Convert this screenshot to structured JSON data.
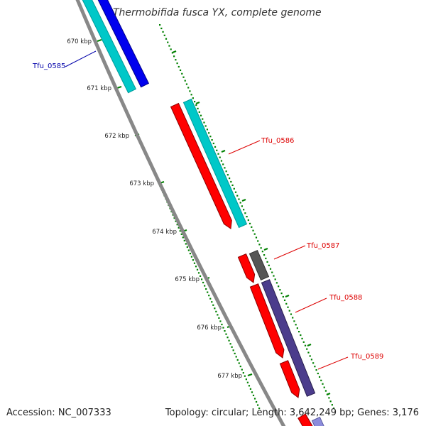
{
  "title": "Thermobifida fusca YX, complete genome",
  "footer": {
    "accession": "Accession: NC_007333",
    "summary": "Topology: circular; Length: 3,642,249 bp; Genes: 3,176"
  },
  "ticks": [
    "670 kbp",
    "671 kbp",
    "672 kbp",
    "673 kbp",
    "674 kbp",
    "675 kbp",
    "676 kbp",
    "677 kbp"
  ],
  "genes": [
    {
      "id": "Tfu_0585",
      "color": "#0000aa"
    },
    {
      "id": "Tfu_0586",
      "color": "#dd0000"
    },
    {
      "id": "Tfu_0587",
      "color": "#dd0000"
    },
    {
      "id": "Tfu_0588",
      "color": "#dd0000"
    },
    {
      "id": "Tfu_0589",
      "color": "#dd0000"
    }
  ],
  "colors": {
    "forward_cds": "#0000ff",
    "reverse_cds": "#ff0000",
    "cog_cyan": "#00c8c8",
    "cog_purple": "#4b3c8c",
    "cog_gray": "#555555",
    "backbone": "#888888",
    "tick": "#008000"
  }
}
